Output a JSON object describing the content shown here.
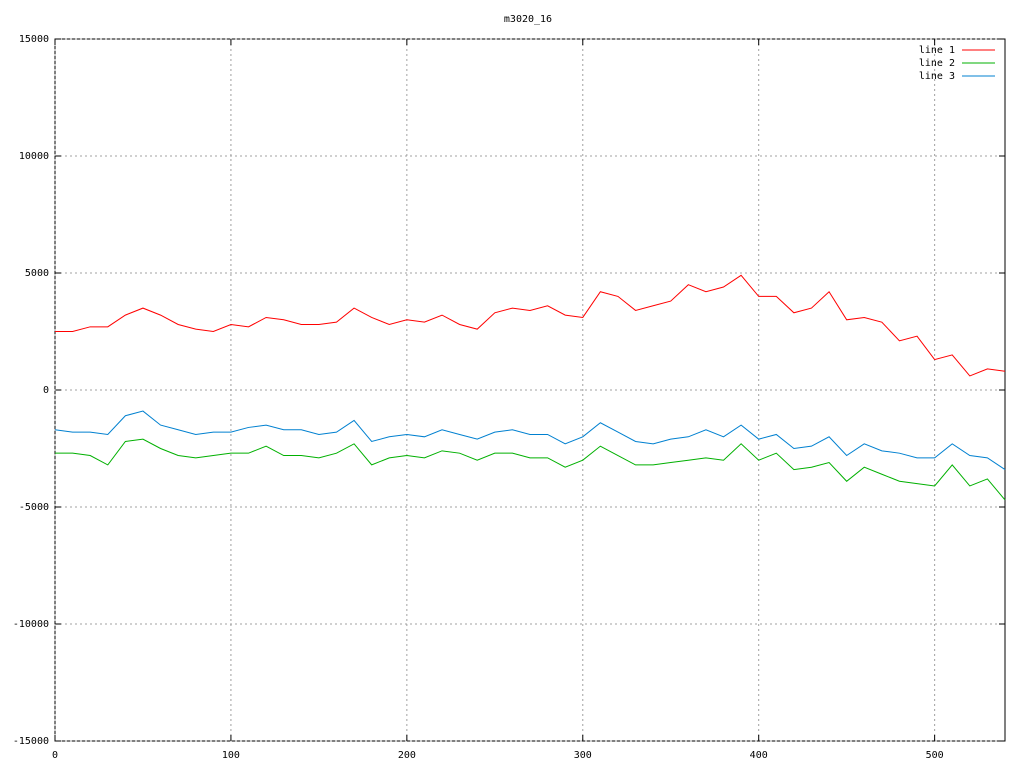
{
  "chart_data": {
    "type": "line",
    "title": "m3020_16",
    "x": [
      0,
      10,
      20,
      30,
      40,
      50,
      60,
      70,
      80,
      90,
      100,
      110,
      120,
      130,
      140,
      150,
      160,
      170,
      180,
      190,
      200,
      210,
      220,
      230,
      240,
      250,
      260,
      270,
      280,
      290,
      300,
      310,
      320,
      330,
      340,
      350,
      360,
      370,
      380,
      390,
      400,
      410,
      420,
      430,
      440,
      450,
      460,
      470,
      480,
      490,
      500,
      510,
      520,
      530,
      540
    ],
    "series": [
      {
        "name": "line 1",
        "color": "#ff0000",
        "values": [
          2500,
          2500,
          2700,
          2700,
          3200,
          3500,
          3200,
          2800,
          2600,
          2500,
          2800,
          2700,
          3100,
          3000,
          2800,
          2800,
          2900,
          3500,
          3100,
          2800,
          3000,
          2900,
          3200,
          2800,
          2600,
          3300,
          3500,
          3400,
          3600,
          3200,
          3100,
          4200,
          4000,
          3400,
          3600,
          3800,
          4500,
          4200,
          4400,
          4900,
          4000,
          4000,
          3300,
          3500,
          4200,
          3000,
          3100,
          2900,
          2100,
          2300,
          1300,
          1500,
          600,
          900,
          800
        ]
      },
      {
        "name": "line 2",
        "color": "#00b000",
        "values": [
          -2700,
          -2700,
          -2800,
          -3200,
          -2200,
          -2100,
          -2500,
          -2800,
          -2900,
          -2800,
          -2700,
          -2700,
          -2400,
          -2800,
          -2800,
          -2900,
          -2700,
          -2300,
          -3200,
          -2900,
          -2800,
          -2900,
          -2600,
          -2700,
          -3000,
          -2700,
          -2700,
          -2900,
          -2900,
          -3300,
          -3000,
          -2400,
          -2800,
          -3200,
          -3200,
          -3100,
          -3000,
          -2900,
          -3000,
          -2300,
          -3000,
          -2700,
          -3400,
          -3300,
          -3100,
          -3900,
          -3300,
          -3600,
          -3900,
          -4000,
          -4100,
          -3200,
          -4100,
          -3800,
          -4700
        ]
      },
      {
        "name": "line 3",
        "color": "#0080d0",
        "values": [
          -1700,
          -1800,
          -1800,
          -1900,
          -1100,
          -900,
          -1500,
          -1700,
          -1900,
          -1800,
          -1800,
          -1600,
          -1500,
          -1700,
          -1700,
          -1900,
          -1800,
          -1300,
          -2200,
          -2000,
          -1900,
          -2000,
          -1700,
          -1900,
          -2100,
          -1800,
          -1700,
          -1900,
          -1900,
          -2300,
          -2000,
          -1400,
          -1800,
          -2200,
          -2300,
          -2100,
          -2000,
          -1700,
          -2000,
          -1500,
          -2100,
          -1900,
          -2500,
          -2400,
          -2000,
          -2800,
          -2300,
          -2600,
          -2700,
          -2900,
          -2900,
          -2300,
          -2800,
          -2900,
          -3400
        ]
      }
    ],
    "xlim": [
      0,
      540
    ],
    "xticks": [
      0,
      100,
      200,
      300,
      400,
      500
    ],
    "ylim": [
      -15000,
      15000
    ],
    "yticks": [
      -15000,
      -10000,
      -5000,
      0,
      5000,
      10000,
      15000
    ],
    "grid": true,
    "legend": "top-right"
  }
}
